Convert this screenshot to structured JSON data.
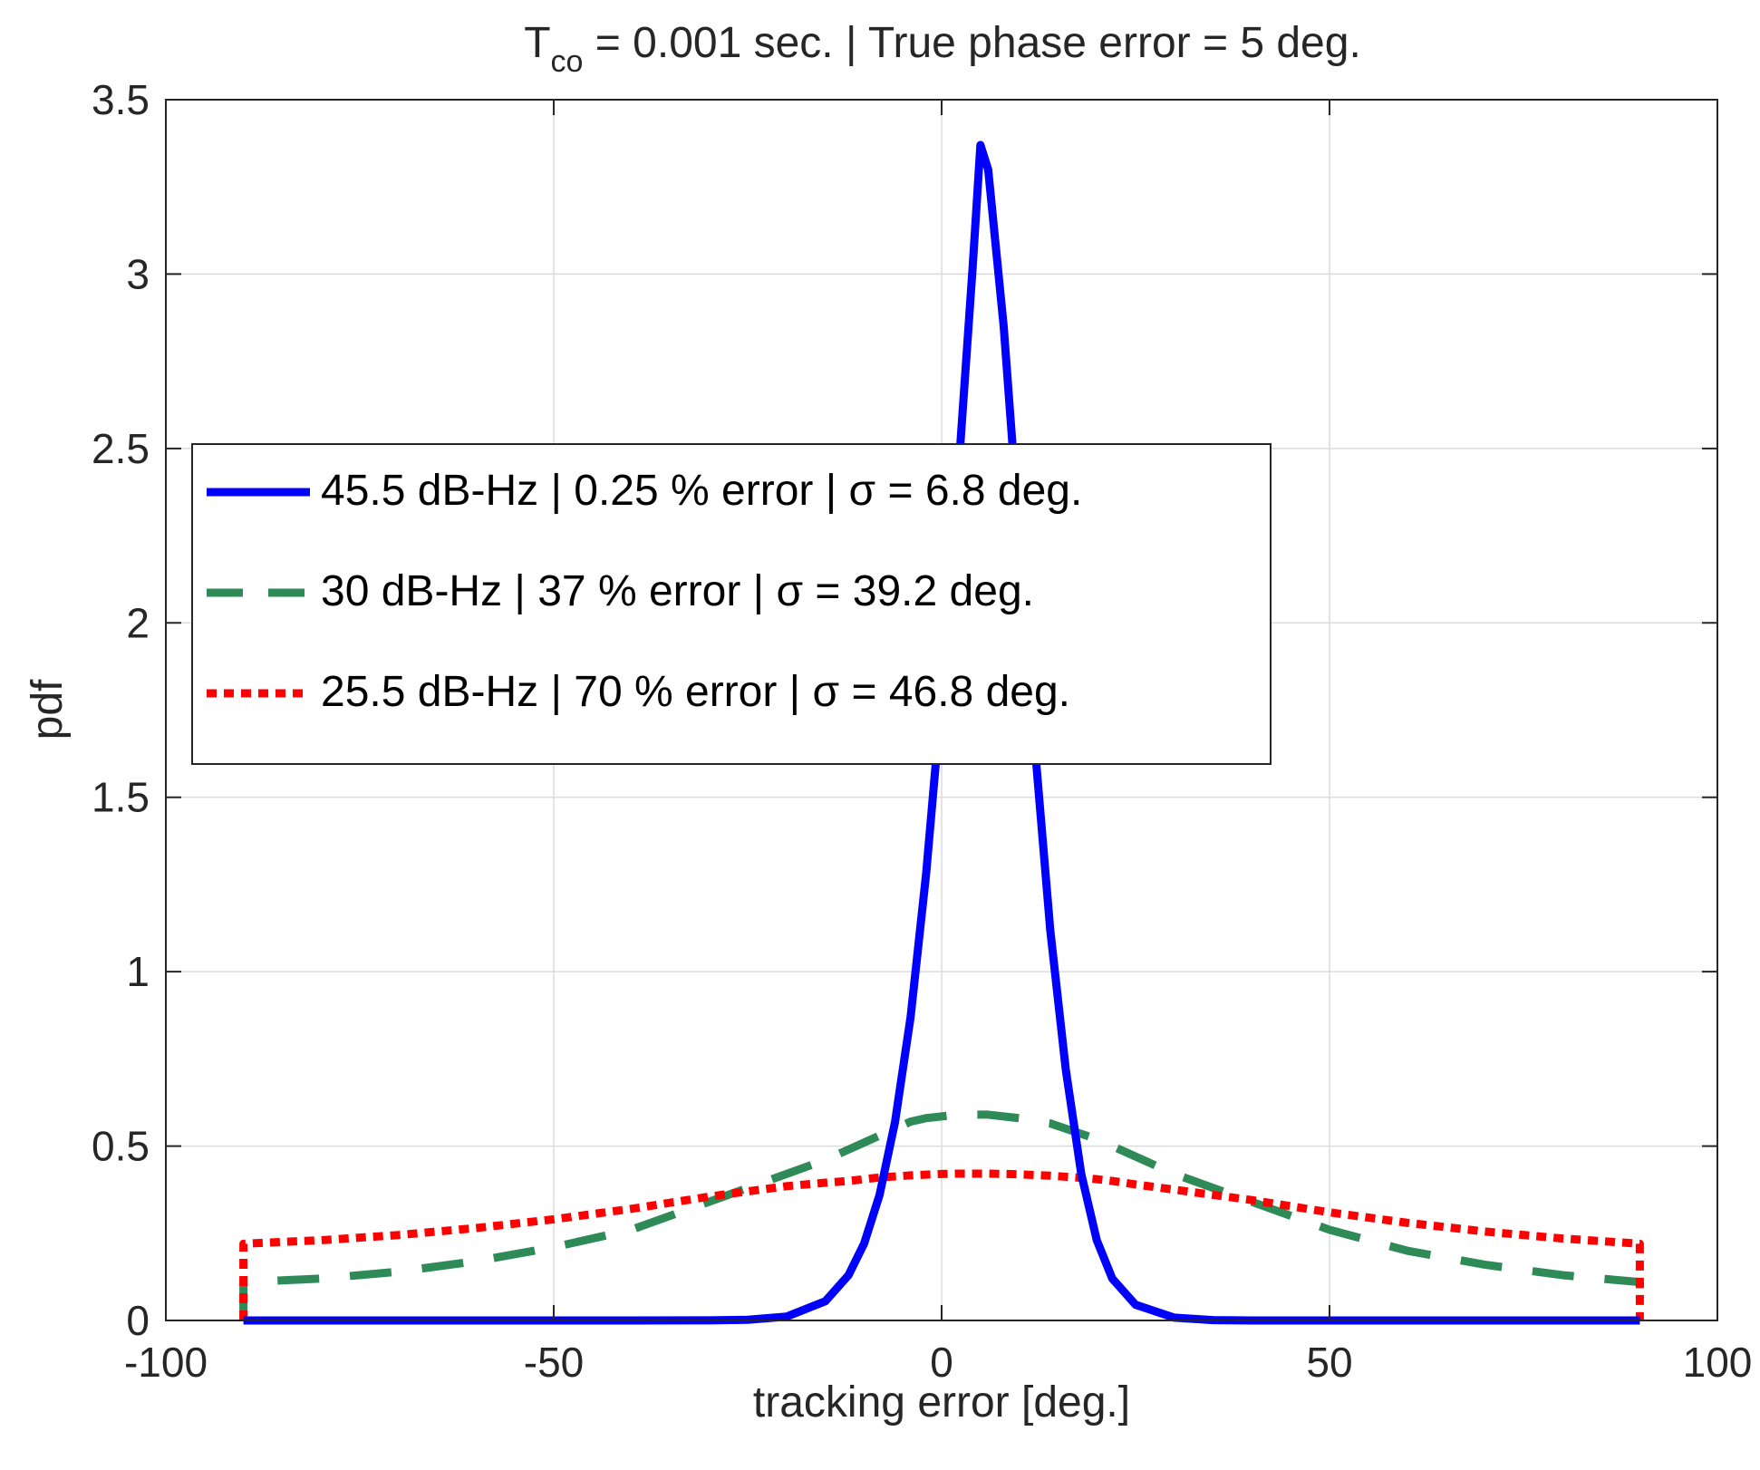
{
  "chart_data": {
    "type": "line",
    "title": {
      "prefix": "T",
      "subscript": "co",
      "suffix": " = 0.001 sec.  |  True phase error = 5 deg."
    },
    "xlabel": "tracking error [deg.]",
    "ylabel": "pdf",
    "xlim": [
      -100,
      100
    ],
    "ylim": [
      0,
      3.5
    ],
    "grid": true,
    "legend_position": "center-left",
    "x_ticks": [
      -100,
      -50,
      0,
      50,
      100
    ],
    "x_tick_labels": [
      "-100",
      "-50",
      "0",
      "50",
      "100"
    ],
    "y_ticks": [
      0,
      0.5,
      1,
      1.5,
      2,
      2.5,
      3,
      3.5
    ],
    "y_tick_labels": [
      "0",
      "0.5",
      "1",
      "1.5",
      "2",
      "2.5",
      "3",
      "3.5"
    ],
    "domain": [
      -90,
      90
    ],
    "x": [
      -90,
      -80,
      -70,
      -60,
      -50,
      -40,
      -30,
      -25,
      -20,
      -15,
      -12,
      -10,
      -8,
      -6,
      -4,
      -2,
      0,
      2,
      4,
      5,
      6,
      8,
      10,
      12,
      14,
      16,
      18,
      20,
      22,
      25,
      30,
      35,
      40,
      50,
      60,
      70,
      80,
      90
    ],
    "series": [
      {
        "name": "45.5 dB-Hz  |  0.25 % error  |",
        "sigma_label": "σ = 6.8 deg.",
        "color": "#0000ff",
        "style": "solid",
        "values": [
          0,
          0,
          0,
          0,
          0,
          0,
          0.0003,
          0.002,
          0.011,
          0.055,
          0.13,
          0.22,
          0.36,
          0.57,
          0.87,
          1.28,
          1.79,
          2.38,
          3.02,
          3.37,
          3.3,
          2.85,
          2.25,
          1.65,
          1.12,
          0.72,
          0.42,
          0.23,
          0.12,
          0.045,
          0.008,
          0.001,
          0.0001,
          0,
          0,
          0,
          0,
          0
        ]
      },
      {
        "name": "30 dB-Hz  |  37 % error  |",
        "sigma_label": "σ = 39.2 deg.",
        "color": "#2e8b57",
        "style": "dashed",
        "values": [
          0.11,
          0.12,
          0.14,
          0.17,
          0.21,
          0.26,
          0.34,
          0.38,
          0.42,
          0.46,
          0.49,
          0.51,
          0.53,
          0.55,
          0.57,
          0.58,
          0.585,
          0.59,
          0.59,
          0.59,
          0.59,
          0.585,
          0.58,
          0.57,
          0.565,
          0.55,
          0.535,
          0.52,
          0.5,
          0.47,
          0.42,
          0.38,
          0.34,
          0.26,
          0.2,
          0.16,
          0.13,
          0.11
        ]
      },
      {
        "name": "25.5 dB-Hz  |  70 % error  |",
        "sigma_label": "σ = 46.8 deg.",
        "color": "#ff0000",
        "style": "dotted",
        "values": [
          0.22,
          0.23,
          0.245,
          0.265,
          0.29,
          0.32,
          0.355,
          0.37,
          0.385,
          0.395,
          0.4,
          0.405,
          0.41,
          0.413,
          0.416,
          0.418,
          0.42,
          0.421,
          0.421,
          0.421,
          0.421,
          0.42,
          0.419,
          0.417,
          0.415,
          0.412,
          0.409,
          0.405,
          0.4,
          0.39,
          0.375,
          0.36,
          0.345,
          0.31,
          0.28,
          0.255,
          0.235,
          0.22
        ]
      }
    ]
  }
}
